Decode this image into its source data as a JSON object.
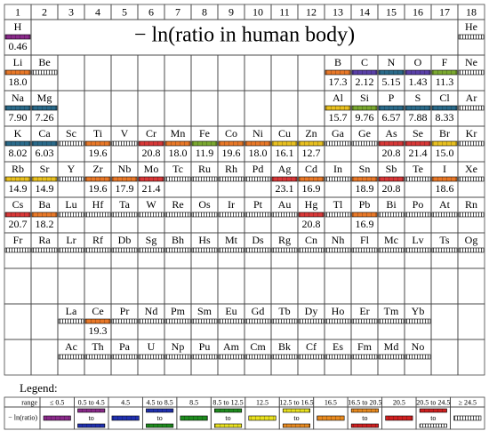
{
  "header": {
    "groups": [
      "1",
      "2",
      "3",
      "4",
      "5",
      "6",
      "7",
      "8",
      "9",
      "10",
      "11",
      "12",
      "13",
      "14",
      "15",
      "16",
      "17",
      "18"
    ],
    "title": "− ln(ratio in human body)"
  },
  "table": {
    "rows": [
      [
        {
          "symbol": "H",
          "value": "0.46",
          "color": "#8a2a8a"
        },
        null,
        null,
        null,
        null,
        null,
        null,
        null,
        null,
        null,
        null,
        null,
        null,
        null,
        null,
        null,
        null,
        {
          "symbol": "He",
          "color": "#ffffff"
        }
      ],
      [
        {
          "symbol": "Li",
          "value": "18.0",
          "color": "#e87828"
        },
        {
          "symbol": "Be",
          "color": "#ffffff"
        },
        null,
        null,
        null,
        null,
        null,
        null,
        null,
        null,
        null,
        null,
        {
          "symbol": "B",
          "value": "17.3",
          "color": "#e87828"
        },
        {
          "symbol": "C",
          "value": "2.12",
          "color": "#5a40a8"
        },
        {
          "symbol": "N",
          "value": "5.15",
          "color": "#2a6a8a"
        },
        {
          "symbol": "O",
          "value": "1.43",
          "color": "#5a40a8"
        },
        {
          "symbol": "F",
          "value": "11.3",
          "color": "#7aa830"
        },
        {
          "symbol": "Ne",
          "color": "#ffffff"
        }
      ],
      [
        {
          "symbol": "Na",
          "value": "7.90",
          "color": "#2a6a8a"
        },
        {
          "symbol": "Mg",
          "value": "7.26",
          "color": "#2a6a8a"
        },
        null,
        null,
        null,
        null,
        null,
        null,
        null,
        null,
        null,
        null,
        {
          "symbol": "Al",
          "value": "15.7",
          "color": "#e8c020"
        },
        {
          "symbol": "Si",
          "value": "9.76",
          "color": "#7aa830"
        },
        {
          "symbol": "P",
          "value": "6.57",
          "color": "#2a6a8a"
        },
        {
          "symbol": "S",
          "value": "7.88",
          "color": "#2a6a8a"
        },
        {
          "symbol": "Cl",
          "value": "8.33",
          "color": "#2a6a8a"
        },
        {
          "symbol": "Ar",
          "color": "#ffffff"
        }
      ],
      [
        {
          "symbol": "K",
          "value": "8.02",
          "color": "#2a6a8a"
        },
        {
          "symbol": "Ca",
          "value": "6.03",
          "color": "#2a6a8a"
        },
        {
          "symbol": "Sc",
          "color": "#ffffff"
        },
        {
          "symbol": "Ti",
          "value": "19.6",
          "color": "#e87828"
        },
        {
          "symbol": "V",
          "color": "#ffffff"
        },
        {
          "symbol": "Cr",
          "value": "20.8",
          "color": "#d83838"
        },
        {
          "symbol": "Mn",
          "value": "18.0",
          "color": "#e87828"
        },
        {
          "symbol": "Fe",
          "value": "11.9",
          "color": "#7aa830"
        },
        {
          "symbol": "Co",
          "value": "19.6",
          "color": "#e87828"
        },
        {
          "symbol": "Ni",
          "value": "18.0",
          "color": "#e87828"
        },
        {
          "symbol": "Cu",
          "value": "16.1",
          "color": "#e8c020"
        },
        {
          "symbol": "Zn",
          "value": "12.7",
          "color": "#e8c020"
        },
        {
          "symbol": "Ga",
          "color": "#ffffff"
        },
        {
          "symbol": "Ge",
          "color": "#ffffff"
        },
        {
          "symbol": "As",
          "value": "20.8",
          "color": "#d83838"
        },
        {
          "symbol": "Se",
          "value": "21.4",
          "color": "#d83838"
        },
        {
          "symbol": "Br",
          "value": "15.0",
          "color": "#e8c020"
        },
        {
          "symbol": "Kr",
          "color": "#ffffff"
        }
      ],
      [
        {
          "symbol": "Rb",
          "value": "14.9",
          "color": "#e8c020"
        },
        {
          "symbol": "Sr",
          "value": "14.9",
          "color": "#e8c020"
        },
        {
          "symbol": "Y",
          "color": "#ffffff"
        },
        {
          "symbol": "Zr",
          "value": "19.6",
          "color": "#e87828"
        },
        {
          "symbol": "Nb",
          "value": "17.9",
          "color": "#e87828"
        },
        {
          "symbol": "Mo",
          "value": "21.4",
          "color": "#d83838"
        },
        {
          "symbol": "Tc",
          "color": "#ffffff"
        },
        {
          "symbol": "Ru",
          "color": "#ffffff"
        },
        {
          "symbol": "Rh",
          "color": "#ffffff"
        },
        {
          "symbol": "Pd",
          "color": "#ffffff"
        },
        {
          "symbol": "Ag",
          "value": "23.1",
          "color": "#d83838"
        },
        {
          "symbol": "Cd",
          "value": "16.9",
          "color": "#e87828"
        },
        {
          "symbol": "In",
          "color": "#ffffff"
        },
        {
          "symbol": "Sn",
          "value": "18.9",
          "color": "#e87828"
        },
        {
          "symbol": "Sb",
          "value": "20.8",
          "color": "#d83838"
        },
        {
          "symbol": "Te",
          "color": "#ffffff"
        },
        {
          "symbol": "I",
          "value": "18.6",
          "color": "#e87828"
        },
        {
          "symbol": "Xe",
          "color": "#ffffff"
        }
      ],
      [
        {
          "symbol": "Cs",
          "value": "20.7",
          "color": "#d83838"
        },
        {
          "symbol": "Ba",
          "value": "18.2",
          "color": "#e87828"
        },
        {
          "symbol": "Lu",
          "color": "#ffffff"
        },
        {
          "symbol": "Hf",
          "color": "#ffffff"
        },
        {
          "symbol": "Ta",
          "color": "#ffffff"
        },
        {
          "symbol": "W",
          "color": "#ffffff"
        },
        {
          "symbol": "Re",
          "color": "#ffffff"
        },
        {
          "symbol": "Os",
          "color": "#ffffff"
        },
        {
          "symbol": "Ir",
          "color": "#ffffff"
        },
        {
          "symbol": "Pt",
          "color": "#ffffff"
        },
        {
          "symbol": "Au",
          "color": "#ffffff"
        },
        {
          "symbol": "Hg",
          "value": "20.8",
          "color": "#d83838"
        },
        {
          "symbol": "Tl",
          "color": "#ffffff"
        },
        {
          "symbol": "Pb",
          "value": "16.9",
          "color": "#e87828"
        },
        {
          "symbol": "Bi",
          "color": "#ffffff"
        },
        {
          "symbol": "Po",
          "color": "#ffffff"
        },
        {
          "symbol": "At",
          "color": "#ffffff"
        },
        {
          "symbol": "Rn",
          "color": "#ffffff"
        }
      ],
      [
        {
          "symbol": "Fr",
          "color": "#ffffff"
        },
        {
          "symbol": "Ra",
          "color": "#ffffff"
        },
        {
          "symbol": "Lr",
          "color": "#ffffff"
        },
        {
          "symbol": "Rf",
          "color": "#ffffff"
        },
        {
          "symbol": "Db",
          "color": "#ffffff"
        },
        {
          "symbol": "Sg",
          "color": "#ffffff"
        },
        {
          "symbol": "Bh",
          "color": "#ffffff"
        },
        {
          "symbol": "Hs",
          "color": "#ffffff"
        },
        {
          "symbol": "Mt",
          "color": "#ffffff"
        },
        {
          "symbol": "Ds",
          "color": "#ffffff"
        },
        {
          "symbol": "Rg",
          "color": "#ffffff"
        },
        {
          "symbol": "Cn",
          "color": "#ffffff"
        },
        {
          "symbol": "Nh",
          "color": "#ffffff"
        },
        {
          "symbol": "Fl",
          "color": "#ffffff"
        },
        {
          "symbol": "Mc",
          "color": "#ffffff"
        },
        {
          "symbol": "Lv",
          "color": "#ffffff"
        },
        {
          "symbol": "Ts",
          "color": "#ffffff"
        },
        {
          "symbol": "Og",
          "color": "#ffffff"
        }
      ],
      [
        null,
        null,
        null,
        null,
        null,
        null,
        null,
        null,
        null,
        null,
        null,
        null,
        null,
        null,
        null,
        null,
        null,
        null
      ],
      [
        null,
        null,
        {
          "symbol": "La",
          "color": "#ffffff"
        },
        {
          "symbol": "Ce",
          "value": "19.3",
          "color": "#e87828"
        },
        {
          "symbol": "Pr",
          "color": "#ffffff"
        },
        {
          "symbol": "Nd",
          "color": "#ffffff"
        },
        {
          "symbol": "Pm",
          "color": "#ffffff"
        },
        {
          "symbol": "Sm",
          "color": "#ffffff"
        },
        {
          "symbol": "Eu",
          "color": "#ffffff"
        },
        {
          "symbol": "Gd",
          "color": "#ffffff"
        },
        {
          "symbol": "Tb",
          "color": "#ffffff"
        },
        {
          "symbol": "Dy",
          "color": "#ffffff"
        },
        {
          "symbol": "Ho",
          "color": "#ffffff"
        },
        {
          "symbol": "Er",
          "color": "#ffffff"
        },
        {
          "symbol": "Tm",
          "color": "#ffffff"
        },
        {
          "symbol": "Yb",
          "color": "#ffffff"
        },
        null,
        null
      ],
      [
        null,
        null,
        {
          "symbol": "Ac",
          "color": "#ffffff"
        },
        {
          "symbol": "Th",
          "color": "#ffffff"
        },
        {
          "symbol": "Pa",
          "color": "#ffffff"
        },
        {
          "symbol": "U",
          "color": "#ffffff"
        },
        {
          "symbol": "Np",
          "color": "#ffffff"
        },
        {
          "symbol": "Pu",
          "color": "#ffffff"
        },
        {
          "symbol": "Am",
          "color": "#ffffff"
        },
        {
          "symbol": "Cm",
          "color": "#ffffff"
        },
        {
          "symbol": "Bk",
          "color": "#ffffff"
        },
        {
          "symbol": "Cf",
          "color": "#ffffff"
        },
        {
          "symbol": "Es",
          "color": "#ffffff"
        },
        {
          "symbol": "Fm",
          "color": "#ffffff"
        },
        {
          "symbol": "Md",
          "color": "#ffffff"
        },
        {
          "symbol": "No",
          "color": "#ffffff"
        },
        null,
        null
      ]
    ]
  },
  "legend": {
    "title": "Legend:",
    "row_labels": [
      "range",
      "− ln(ratio)"
    ],
    "joiner": "to",
    "entries": [
      {
        "range": "≤ 0.5",
        "colors": [
          "#8a2a8a"
        ]
      },
      {
        "range": "0.5 to 4.5",
        "colors": [
          "#8a2a8a",
          "#2030b0"
        ]
      },
      {
        "range": "4.5",
        "colors": [
          "#2030b0"
        ]
      },
      {
        "range": "4.5 to 8.5",
        "colors": [
          "#2030b0",
          "#1e8c1e"
        ]
      },
      {
        "range": "8.5",
        "colors": [
          "#1e8c1e"
        ]
      },
      {
        "range": "8.5 to 12.5",
        "colors": [
          "#1e8c1e",
          "#e8e020"
        ]
      },
      {
        "range": "12.5",
        "colors": [
          "#e8e020"
        ]
      },
      {
        "range": "12.5 to 16.5",
        "colors": [
          "#e8e020",
          "#e88a20"
        ]
      },
      {
        "range": "16.5",
        "colors": [
          "#e88a20"
        ]
      },
      {
        "range": "16.5 to 20.5",
        "colors": [
          "#e88a20",
          "#d02020"
        ]
      },
      {
        "range": "20.5",
        "colors": [
          "#d02020"
        ]
      },
      {
        "range": "20.5 to 24.5",
        "colors": [
          "#d02020",
          "#ffffff"
        ]
      },
      {
        "range": "≥ 24.5",
        "colors": [
          "#ffffff"
        ]
      }
    ]
  }
}
